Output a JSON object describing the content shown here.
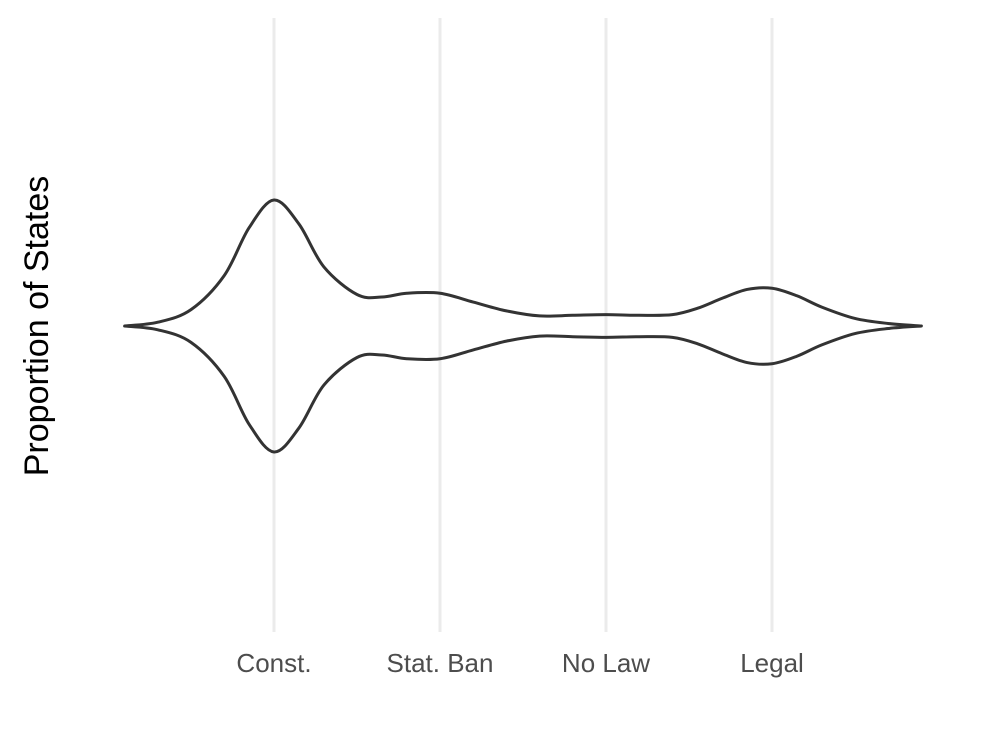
{
  "chart_data": {
    "type": "violin",
    "title": "",
    "xlabel": "",
    "ylabel": "Proportion of States",
    "categories": [
      "Const.",
      "Stat. Ban",
      "No Law",
      "Legal"
    ],
    "x_positions": [
      1,
      2,
      3,
      4
    ],
    "xlim": [
      0.1,
      4.9
    ],
    "density": {
      "x": [
        0.1,
        0.3,
        0.5,
        0.7,
        0.85,
        1.0,
        1.15,
        1.3,
        1.5,
        1.65,
        1.8,
        2.0,
        2.2,
        2.4,
        2.6,
        2.8,
        3.0,
        3.2,
        3.4,
        3.55,
        3.7,
        3.85,
        4.0,
        4.15,
        4.3,
        4.5,
        4.7,
        4.9
      ],
      "half_width": [
        0.0,
        0.03,
        0.13,
        0.4,
        0.78,
        1.0,
        0.81,
        0.47,
        0.25,
        0.23,
        0.26,
        0.26,
        0.19,
        0.12,
        0.08,
        0.085,
        0.09,
        0.085,
        0.09,
        0.14,
        0.22,
        0.29,
        0.3,
        0.24,
        0.15,
        0.06,
        0.02,
        0.0
      ]
    },
    "grid": {
      "vertical_major": true,
      "horizontal": false
    },
    "legend": "none"
  }
}
